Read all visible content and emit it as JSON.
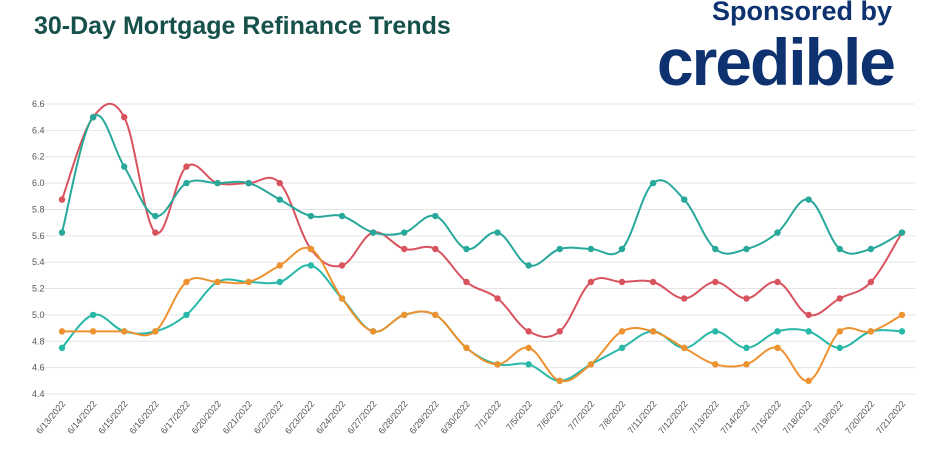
{
  "header": {
    "title": "30-Day Mortgage Refinance Trends",
    "sponsor_text": "Sponsored by",
    "brand": "credible"
  },
  "chart_data": {
    "type": "line",
    "title": "30-Day Mortgage Refinance Trends",
    "xlabel": "",
    "ylabel": "",
    "ylim": [
      4.4,
      6.6
    ],
    "yticks": [
      4.4,
      4.6,
      4.8,
      5.0,
      5.2,
      5.4,
      5.6,
      5.8,
      6.0,
      6.2,
      6.4,
      6.6
    ],
    "grid": true,
    "categories": [
      "6/13/2022",
      "6/14/2022",
      "6/15/2022",
      "6/16/2022",
      "6/17/2022",
      "6/20/2022",
      "6/21/2022",
      "6/22/2022",
      "6/23/2022",
      "6/24/2022",
      "6/27/2022",
      "6/28/2022",
      "6/29/2022",
      "6/30/2022",
      "7/1/2022",
      "7/5/2022",
      "7/6/2022",
      "7/7/2022",
      "7/8/2022",
      "7/11/2022",
      "7/12/2022",
      "7/13/2022",
      "7/14/2022",
      "7/15/2022",
      "7/18/2022",
      "7/19/2022",
      "7/20/2022",
      "7/21/2022"
    ],
    "series": [
      {
        "color": "#d9535f",
        "values": [
          5.875,
          6.5,
          6.5,
          5.625,
          6.125,
          6.0,
          6.0,
          6.0,
          5.5,
          5.375,
          5.625,
          5.5,
          5.5,
          5.25,
          5.125,
          4.875,
          4.875,
          5.25,
          5.25,
          5.25,
          5.125,
          5.25,
          5.125,
          5.25,
          5.0,
          5.125,
          5.25,
          5.625
        ]
      },
      {
        "color": "#27a89a",
        "values": [
          5.625,
          6.5,
          6.125,
          5.75,
          6.0,
          6.0,
          6.0,
          5.875,
          5.75,
          5.75,
          5.625,
          5.625,
          5.75,
          5.5,
          5.625,
          5.375,
          5.5,
          5.5,
          5.5,
          6.0,
          5.875,
          5.5,
          5.5,
          5.625,
          5.875,
          5.5,
          5.5,
          5.625
        ]
      },
      {
        "color": "#27b8a8",
        "values": [
          4.75,
          5.0,
          4.875,
          4.875,
          5.0,
          5.25,
          5.25,
          5.25,
          5.375,
          5.125,
          4.875,
          5.0,
          5.0,
          4.75,
          4.625,
          4.625,
          4.5,
          4.625,
          4.75,
          4.875,
          4.75,
          4.875,
          4.75,
          4.875,
          4.875,
          4.75,
          4.875,
          4.875
        ]
      },
      {
        "color": "#ee922f",
        "values": [
          4.875,
          4.875,
          4.875,
          4.875,
          5.25,
          5.25,
          5.25,
          5.375,
          5.5,
          5.125,
          4.875,
          5.0,
          5.0,
          4.75,
          4.625,
          4.75,
          4.5,
          4.625,
          4.875,
          4.875,
          4.75,
          4.625,
          4.625,
          4.75,
          4.5,
          4.875,
          4.875,
          5.0
        ]
      }
    ]
  }
}
